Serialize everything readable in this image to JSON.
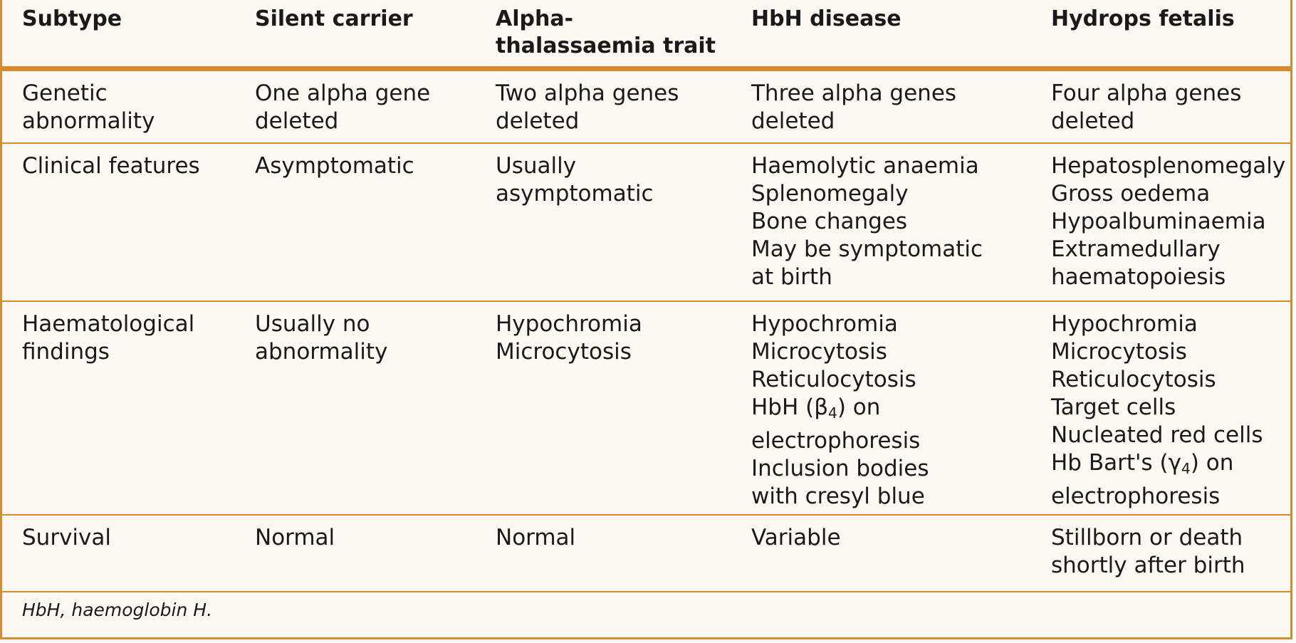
{
  "table": {
    "headers": [
      "Subtype",
      "Silent carrier",
      "Alpha-\nthalassaemia trait",
      "HbH disease",
      "Hydrops fetalis"
    ],
    "rows": [
      {
        "label": "Genetic\nabnormality",
        "cells": [
          "One alpha gene\ndeleted",
          "Two alpha genes\ndeleted",
          "Three alpha genes\ndeleted",
          "Four alpha genes\n deleted"
        ]
      },
      {
        "label": "Clinical features",
        "cells": [
          "Asymptomatic",
          "Usually\nasymptomatic",
          "Haemolytic anaemia\nSplenomegaly\nBone changes\nMay be symptomatic\nat birth",
          "Hepatosplenomegaly\nGross oedema\nHypoalbuminaemia\nExtramedullary\nhaematopoiesis"
        ]
      },
      {
        "label": "Haematological\nfindings",
        "cells": [
          "Usually no\nabnormality",
          "Hypochromia\nMicrocytosis",
          "Hypochromia\nMicrocytosis\nReticulocytosis\nHbH (β4) on\nelectrophoresis\nInclusion bodies\nwith cresyl blue",
          "Hypochromia\nMicrocytosis\nReticulocytosis\nTarget cells\nNucleated red cells\nHb Bart's (γ4) on\nelectrophoresis"
        ]
      },
      {
        "label": "Survival",
        "cells": [
          "Normal",
          "Normal",
          "Variable",
          "Stillborn or death\nshortly after birth"
        ]
      }
    ],
    "footnote": "HbH, haemoglobin H."
  },
  "colors": {
    "border": "#d98a2f",
    "background": "#fdf8f1"
  }
}
